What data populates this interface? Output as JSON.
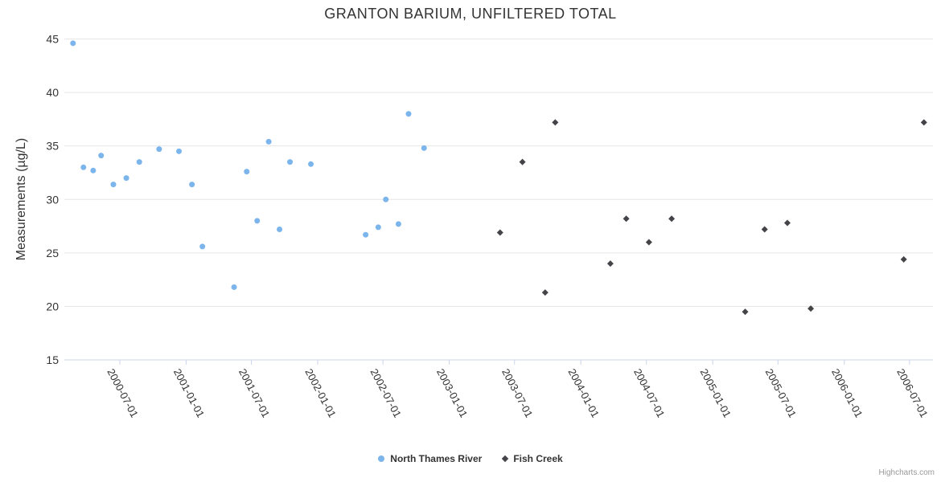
{
  "chart_data": {
    "type": "scatter",
    "title": "GRANTON BARIUM, UNFILTERED TOTAL",
    "xlabel": "",
    "ylabel": "Measurements (µg/L)",
    "ylim": [
      15,
      45
    ],
    "ytick_step": 5,
    "grid": "horizontal",
    "legend_position": "bottom-center",
    "x_type": "datetime",
    "x_range": [
      "2000-01-29",
      "2006-09-04"
    ],
    "x_ticks": [
      "2000-07-01",
      "2001-01-01",
      "2001-07-01",
      "2002-01-01",
      "2002-07-01",
      "2003-01-01",
      "2003-07-01",
      "2004-01-01",
      "2004-07-01",
      "2005-01-01",
      "2005-07-01",
      "2006-01-01",
      "2006-07-01"
    ],
    "series": [
      {
        "name": "North Thames River",
        "color": "#7cb5ec",
        "marker": "circle",
        "points": [
          {
            "date": "2000-02-22",
            "value": 44.6
          },
          {
            "date": "2000-03-22",
            "value": 33.0
          },
          {
            "date": "2000-04-18",
            "value": 32.7
          },
          {
            "date": "2000-05-10",
            "value": 34.1
          },
          {
            "date": "2000-06-13",
            "value": 31.4
          },
          {
            "date": "2000-07-19",
            "value": 32.0
          },
          {
            "date": "2000-08-24",
            "value": 33.5
          },
          {
            "date": "2000-10-18",
            "value": 34.7
          },
          {
            "date": "2000-12-12",
            "value": 34.5
          },
          {
            "date": "2001-01-17",
            "value": 31.4
          },
          {
            "date": "2001-02-15",
            "value": 25.6
          },
          {
            "date": "2001-05-14",
            "value": 21.8
          },
          {
            "date": "2001-06-18",
            "value": 32.6
          },
          {
            "date": "2001-07-17",
            "value": 28.0
          },
          {
            "date": "2001-08-18",
            "value": 35.4
          },
          {
            "date": "2001-09-17",
            "value": 27.2
          },
          {
            "date": "2001-10-16",
            "value": 33.5
          },
          {
            "date": "2001-12-13",
            "value": 33.3
          },
          {
            "date": "2002-05-14",
            "value": 26.7
          },
          {
            "date": "2002-06-18",
            "value": 27.4
          },
          {
            "date": "2002-07-09",
            "value": 30.0
          },
          {
            "date": "2002-08-13",
            "value": 27.7
          },
          {
            "date": "2002-09-10",
            "value": 38.0
          },
          {
            "date": "2002-10-23",
            "value": 34.8
          }
        ]
      },
      {
        "name": "Fish Creek",
        "color": "#434348",
        "marker": "diamond",
        "points": [
          {
            "date": "2003-05-22",
            "value": 26.9
          },
          {
            "date": "2003-07-23",
            "value": 33.5
          },
          {
            "date": "2003-09-24",
            "value": 21.3
          },
          {
            "date": "2003-10-22",
            "value": 37.2
          },
          {
            "date": "2004-03-23",
            "value": 24.0
          },
          {
            "date": "2004-05-06",
            "value": 28.2
          },
          {
            "date": "2004-07-08",
            "value": 26.0
          },
          {
            "date": "2004-09-09",
            "value": 28.2
          },
          {
            "date": "2005-04-01",
            "value": 19.5
          },
          {
            "date": "2005-05-25",
            "value": 27.2
          },
          {
            "date": "2005-07-27",
            "value": 27.8
          },
          {
            "date": "2005-09-30",
            "value": 19.8
          },
          {
            "date": "2006-06-15",
            "value": 24.4
          },
          {
            "date": "2006-08-10",
            "value": 37.2
          }
        ]
      }
    ],
    "credits": "Highcharts.com"
  },
  "colors": {
    "grid": "#e6e6e6",
    "axis_line": "#ccd6eb",
    "tick_label": "#333333",
    "title_text": "#333333",
    "credits_text": "#999999"
  }
}
